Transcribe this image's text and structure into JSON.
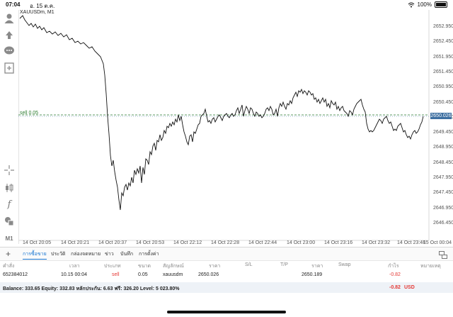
{
  "status_bar": {
    "time": "07:04",
    "date": "อ. 15 ต.ค.",
    "wifi_icon": "wifi-icon",
    "battery": "100%"
  },
  "chart": {
    "title": "XAUUSDm, M1",
    "sell_line_label": "sell 0.05",
    "current_price": "2650.026",
    "price_levels": [
      "2652.950",
      "2652.450",
      "2651.950",
      "2651.450",
      "2650.950",
      "2650.450",
      "2649.950",
      "2649.450",
      "2648.950",
      "2648.450",
      "2647.950",
      "2647.450",
      "2646.950",
      "2646.450"
    ],
    "time_labels": [
      "14 Oct 20:05",
      "14 Oct 20:21",
      "14 Oct 20:37",
      "14 Oct 20:53",
      "14 Oct 22:12",
      "14 Oct 22:28",
      "14 Oct 22:44",
      "14 Oct 23:00",
      "14 Oct 23:16",
      "14 Oct 23:32",
      "14 Oct 23:48",
      "15 Oct 00:04"
    ]
  },
  "toolbar": {
    "icons": [
      "user-icon",
      "trade-icon",
      "chat-icon",
      "new-order-icon",
      "crosshair-icon",
      "candles-icon",
      "indicator-icon",
      "objects-icon",
      "timeframe-icon"
    ],
    "timeframe_label": "M1"
  },
  "tabs": {
    "items": [
      "การซื้อขาย",
      "ประวัติ",
      "กล่องจดหมาย",
      "ข่าว",
      "บันทึก",
      "การตั้งค่า"
    ],
    "active_index": 0
  },
  "positions": {
    "headers": [
      "คำสั่ง",
      "เวลา",
      "ประเภท",
      "ขนาด",
      "สัญลักษณ์",
      "ราคา",
      "S/L",
      "T/P",
      "ราคา",
      "Swap",
      "กำไร",
      "หมายเหตุ"
    ],
    "rows": [
      {
        "order": "652384012",
        "time": "10.15 00:04",
        "type": "sell",
        "size": "0.05",
        "symbol": "xauusdm",
        "open_price": "2650.026",
        "sl": "",
        "tp": "",
        "price": "2650.189",
        "swap": "",
        "profit": "-0.82",
        "comment": ""
      }
    ]
  },
  "balance": {
    "text": "Balance: 333.65 Equity: 332.83 หลักประกัน: 6.63 ฟรี: 326.20 Level: 5 023.80%",
    "profit": "-0.82",
    "currency": "USD"
  },
  "colors": {
    "accent": "#1976d2",
    "loss": "#e53935",
    "sell_line": "#2e7d32",
    "price_box": "#3d6fa1"
  }
}
